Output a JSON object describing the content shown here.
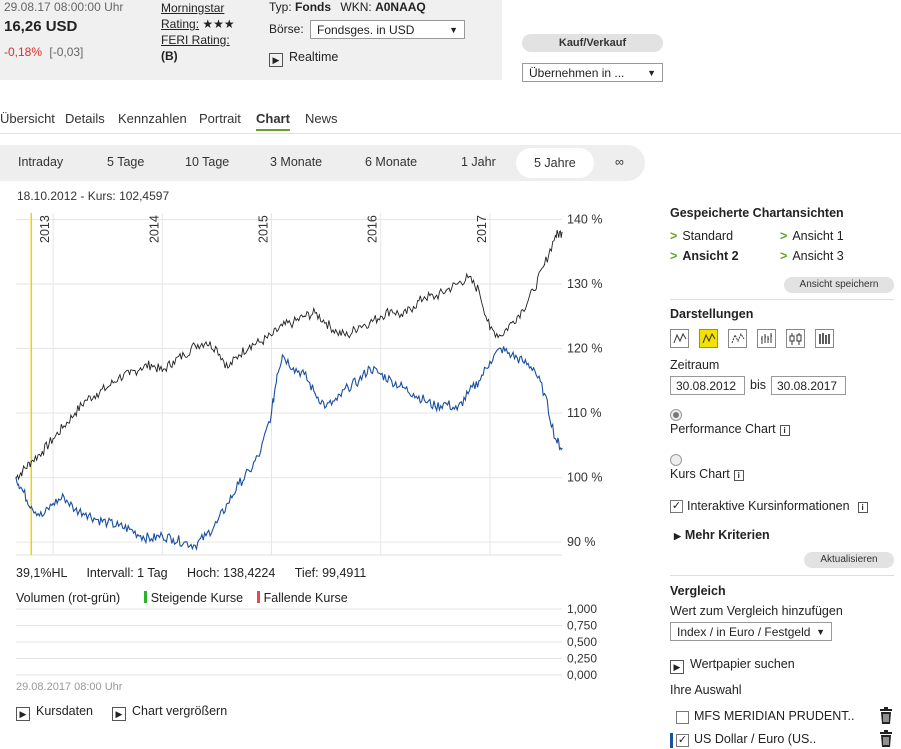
{
  "quote": {
    "datetime": "29.08.17  08:00:00 Uhr",
    "price": "16,26 USD",
    "change_pct": "-0,18%",
    "change_abs": "[-0,03]",
    "morningstar_label_line1": "Morningstar",
    "morningstar_label_line2": "Rating:",
    "morningstar_stars": "★★★",
    "feri_label": "FERI Rating:",
    "feri_value": "(B)",
    "typ_label": "Typ:",
    "typ_value": "Fonds",
    "wkn_label": "WKN:",
    "wkn_value": "A0NAAQ",
    "boerse_label": "Börse:",
    "boerse_value": "Fondsges. in USD",
    "realtime_label": "Realtime"
  },
  "actions": {
    "kauf_verkauf": "Kauf/Verkauf",
    "uebernehmen": "Übernehmen in ..."
  },
  "tabs": [
    "Übersicht",
    "Details",
    "Kennzahlen",
    "Portrait",
    "Chart",
    "News"
  ],
  "active_tab": "Chart",
  "ranges": [
    "Intraday",
    "5 Tage",
    "10 Tage",
    "3 Monate",
    "6 Monate",
    "1 Jahr",
    "5 Jahre",
    "∞"
  ],
  "active_range": "5 Jahre",
  "chart_info": "18.10.2012  -  Kurs: 102,4597",
  "stats": {
    "hl": "39,1%HL",
    "intervall": "Intervall: 1 Tag",
    "hoch": "Hoch: 138,4224",
    "tief": "Tief: 99,4911"
  },
  "volume": {
    "label": "Volumen (rot-grün)",
    "rising": "Steigende Kurse",
    "falling": "Fallende Kurse",
    "ticks": [
      "1,000",
      "0,750",
      "0,500",
      "0,250",
      "0,000"
    ],
    "date": "29.08.2017 08:00 Uhr"
  },
  "chart_links": {
    "kursdaten": "Kursdaten",
    "vergroessern": "Chart vergrößern"
  },
  "colors": {
    "accent": "#6aa02a",
    "series_blue": "#1b4fa0",
    "series_black": "#222222",
    "cursor_line": "#f2d100",
    "negative": "#d9302c"
  },
  "chart_data": {
    "type": "line",
    "x_ticks": [
      "2013",
      "2014",
      "2015",
      "2016",
      "2017"
    ],
    "y_ticks": [
      "140 %",
      "130 %",
      "120 %",
      "110 %",
      "100 %",
      "90 %"
    ],
    "ylim": [
      88,
      141
    ],
    "xlim": [
      2012.66,
      2017.66
    ],
    "grid": true,
    "series": [
      {
        "x": [
          2012.66,
          2012.72,
          2012.8,
          2012.9,
          2013.0,
          2013.1,
          2013.2,
          2013.3,
          2013.4,
          2013.5,
          2013.6,
          2013.7,
          2013.8,
          2013.9,
          2014.0,
          2014.1,
          2014.2,
          2014.3,
          2014.4,
          2014.5,
          2014.6,
          2014.7,
          2014.8,
          2014.9,
          2015.0,
          2015.1,
          2015.2,
          2015.3,
          2015.4,
          2015.5,
          2015.6,
          2015.7,
          2015.8,
          2015.9,
          2016.0,
          2016.1,
          2016.2,
          2016.3,
          2016.4,
          2016.5,
          2016.6,
          2016.7,
          2016.8,
          2016.9,
          2017.0,
          2017.1,
          2017.2,
          2017.3,
          2017.4,
          2017.5,
          2017.6,
          2017.66
        ],
        "values": [
          100,
          101,
          102.5,
          104,
          106,
          108,
          110,
          112,
          113,
          114,
          115.5,
          116,
          117,
          117.5,
          116.5,
          118,
          119,
          120.5,
          121,
          120,
          117,
          119,
          120.5,
          121,
          122,
          123.5,
          124,
          125,
          125.5,
          124,
          122.5,
          122,
          123.5,
          124,
          125,
          126,
          125,
          126.5,
          128,
          128,
          129,
          130,
          131,
          129,
          123,
          122,
          124,
          126,
          129,
          133,
          137.5,
          138
        ]
      },
      {
        "x": [
          2012.66,
          2012.72,
          2012.8,
          2012.9,
          2013.0,
          2013.1,
          2013.2,
          2013.3,
          2013.4,
          2013.5,
          2013.6,
          2013.7,
          2013.8,
          2013.9,
          2014.0,
          2014.1,
          2014.2,
          2014.3,
          2014.4,
          2014.5,
          2014.6,
          2014.7,
          2014.8,
          2014.9,
          2015.0,
          2015.05,
          2015.1,
          2015.2,
          2015.3,
          2015.4,
          2015.5,
          2015.6,
          2015.7,
          2015.8,
          2015.9,
          2016.0,
          2016.1,
          2016.2,
          2016.3,
          2016.4,
          2016.5,
          2016.6,
          2016.7,
          2016.8,
          2016.9,
          2017.0,
          2017.1,
          2017.2,
          2017.3,
          2017.4,
          2017.5,
          2017.6,
          2017.66
        ],
        "values": [
          100,
          98,
          95.5,
          94,
          96,
          97,
          95,
          94.5,
          93.5,
          93,
          92.5,
          92,
          91,
          90.5,
          91,
          90.5,
          90,
          89.5,
          91,
          93,
          96,
          99,
          101,
          104,
          110,
          116,
          119,
          117,
          116,
          113,
          111,
          112,
          114,
          115,
          117,
          116,
          115,
          114,
          113,
          112,
          111,
          111.5,
          110.5,
          113,
          115,
          118,
          120,
          119,
          118,
          117,
          113,
          106,
          104.5
        ]
      }
    ]
  },
  "side": {
    "saved_title": "Gespeicherte Chartansichten",
    "views": [
      "Standard",
      "Ansicht 1",
      "Ansicht 2",
      "Ansicht 3"
    ],
    "active_view": "Ansicht 2",
    "save_view": "Ansicht speichern",
    "darstellungen": "Darstellungen",
    "chart_type_icons": [
      "line-icon",
      "mountain-icon",
      "point-and-line-icon",
      "ohlc-icon",
      "candlestick-icon",
      "hlc-icon"
    ],
    "zeitraum": "Zeitraum",
    "from": "30.08.2012",
    "bis": "bis",
    "to": "30.08.2017",
    "performance_chart": "Performance Chart",
    "kurs_chart": "Kurs Chart",
    "interaktive": "Interaktive Kursinformationen",
    "mehr_kriterien": "Mehr Kriterien",
    "aktualisieren": "Aktualisieren",
    "vergleich_title": "Vergleich",
    "vergleich_sub": "Wert zum Vergleich hinzufügen",
    "vergleich_select": "Index / in Euro / Festgeld",
    "wertpapier_suchen": "Wertpapier suchen",
    "ihre_auswahl": "Ihre Auswahl",
    "selections": [
      {
        "label": "MFS MERIDIAN PRUDENT..",
        "checked": false,
        "color": ""
      },
      {
        "label": "US Dollar / Euro (US..",
        "checked": true,
        "color": "#1b4fa0"
      }
    ]
  }
}
